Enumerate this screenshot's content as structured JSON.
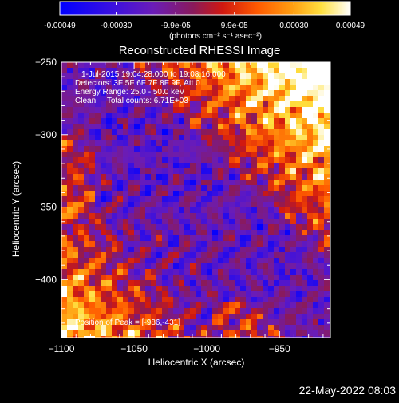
{
  "colorbar": {
    "tick_labels": [
      "-0.00049",
      "-0.00030",
      "-9.9e-05",
      "9.9e-05",
      "0.00030",
      "0.00049"
    ],
    "tick_values": [
      -0.00049,
      -0.0003,
      -9.9e-05,
      9.9e-05,
      0.0003,
      0.00049
    ],
    "range": [
      -0.00049,
      0.00049
    ],
    "units_label": "(photons cm⁻² s⁻¹ asec⁻²)"
  },
  "chart_data": {
    "type": "heatmap",
    "title": "Reconstructed RHESSI Image",
    "xlabel": "Heliocentric X (arcsec)",
    "ylabel": "Heliocentric Y (arcsec)",
    "xlim": [
      -1100,
      -915
    ],
    "ylim": [
      -440,
      -250
    ],
    "xticks": [
      -1100,
      -1050,
      -1000,
      -950
    ],
    "yticks": [
      -250,
      -300,
      -350,
      -400
    ],
    "xtick_labels": [
      "−1100",
      "−1050",
      "−1000",
      "−950"
    ],
    "ytick_labels": [
      "−250",
      "−300",
      "−350",
      "−400"
    ],
    "colormap": "red-temperature (blue → purple → red → orange → yellow → white)",
    "annotations": [
      "1-Jul-2015 19:04:28.000 to 19:08:16.000",
      "Detectors: 3F 5F 6F 7F 8F 9F, Att 0",
      "Energy Range: 25.0 - 50.0 keV",
      "Clean     Total counts: 6.71E+03"
    ],
    "peak_label": "Position of Peak = [-986,-431]",
    "peak_position": [
      -986,
      -431
    ]
  },
  "timestamp": "22-May-2022 08:03"
}
